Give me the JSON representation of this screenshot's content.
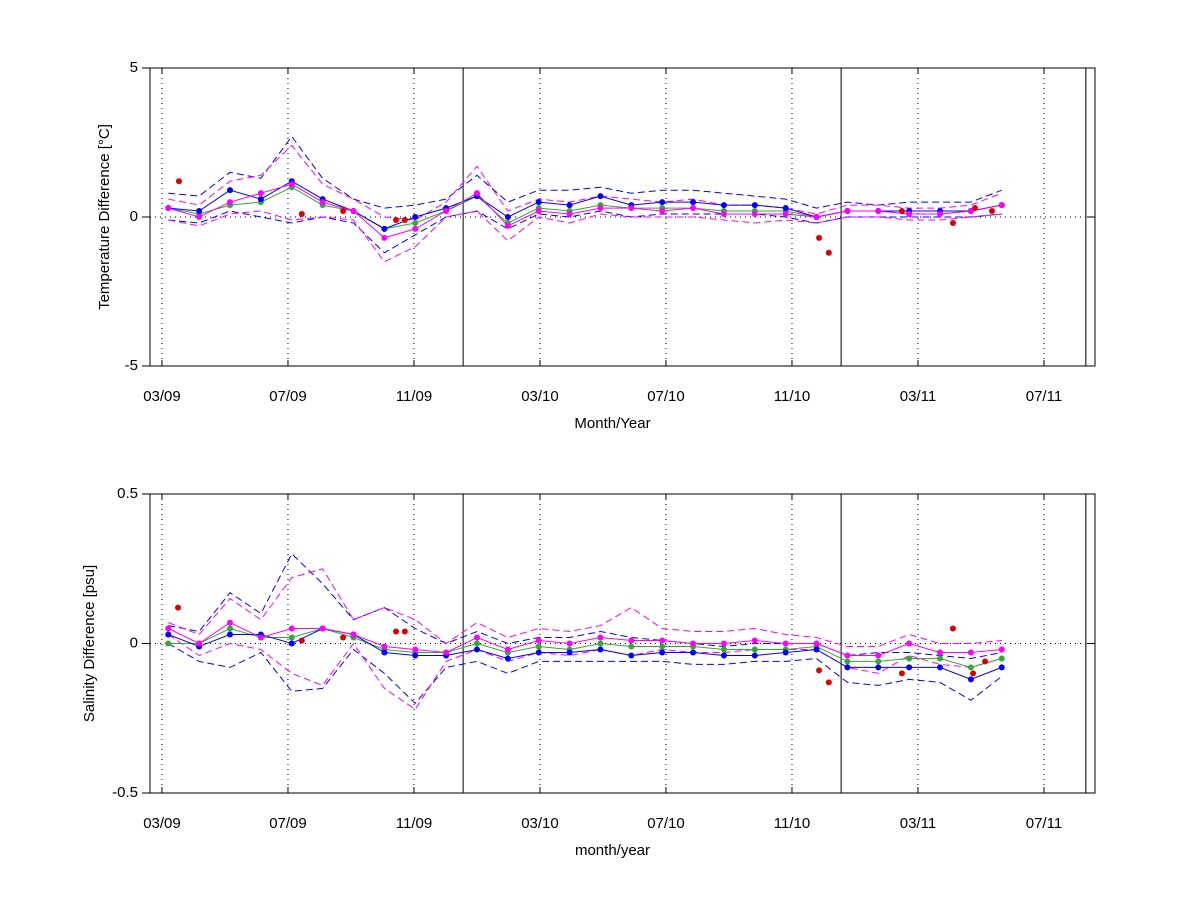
{
  "chart_data": [
    {
      "type": "line",
      "ylabel": "Temperature Difference [°C]",
      "xlabel": "Month/Year",
      "xlim": [
        -0.38,
        29.62
      ],
      "ylim": [
        -5,
        5
      ],
      "yticks": [
        -5,
        0,
        5
      ],
      "xticks": [
        {
          "value": 0,
          "label": "03/09"
        },
        {
          "value": 4,
          "label": "07/09"
        },
        {
          "value": 8,
          "label": "11/09"
        },
        {
          "value": 12,
          "label": "03/10"
        },
        {
          "value": 16,
          "label": "07/10"
        },
        {
          "value": 20,
          "label": "11/10"
        },
        {
          "value": 24,
          "label": "03/11"
        },
        {
          "value": 28,
          "label": "07/11"
        }
      ],
      "vlines": [
        9.56,
        21.56,
        29.33
      ],
      "grid": true,
      "x": [
        0.2,
        1.18,
        2.16,
        3.14,
        4.12,
        5.1,
        6.08,
        7.06,
        8.04,
        9.02,
        10,
        10.98,
        11.96,
        12.94,
        13.92,
        14.9,
        15.88,
        16.86,
        17.84,
        18.82,
        19.8,
        20.78,
        21.76,
        22.74,
        23.72,
        24.7,
        25.68,
        26.66
      ],
      "series": [
        {
          "color": "#0000ff",
          "style": "dashed",
          "values": [
            0.8,
            0.7,
            1.5,
            1.3,
            2.7,
            1.3,
            0.6,
            0.3,
            0.4,
            0.6,
            1.4,
            0.5,
            0.9,
            0.9,
            1.0,
            0.8,
            0.9,
            0.9,
            0.8,
            0.7,
            0.6,
            0.3,
            0.5,
            0.4,
            0.5,
            0.5,
            0.5,
            0.9
          ]
        },
        {
          "color": "#0000ff",
          "style": "dashed",
          "values": [
            -0.1,
            -0.2,
            0.2,
            0.0,
            -0.2,
            0.0,
            -0.2,
            -1.2,
            -0.6,
            0.0,
            0.2,
            -0.4,
            0.1,
            0.0,
            0.2,
            0.0,
            0.1,
            0.1,
            0.1,
            0.1,
            0.0,
            -0.2,
            0.0,
            0.0,
            0.0,
            0.0,
            0.0,
            0.1
          ]
        },
        {
          "color": "#ff00ff",
          "style": "dashed",
          "values": [
            0.6,
            0.4,
            1.2,
            1.4,
            2.4,
            1.1,
            0.6,
            0.0,
            -0.1,
            0.5,
            1.7,
            0.2,
            0.6,
            0.5,
            0.7,
            0.6,
            0.5,
            0.6,
            0.4,
            0.4,
            0.3,
            0.1,
            0.4,
            0.4,
            0.3,
            0.3,
            0.4,
            0.8
          ]
        },
        {
          "color": "#ff00ff",
          "style": "dashed",
          "values": [
            -0.1,
            -0.3,
            0.1,
            0.2,
            -0.1,
            0.0,
            -0.1,
            -1.5,
            -1.0,
            0.0,
            0.2,
            -0.8,
            0.0,
            -0.2,
            0.1,
            0.0,
            0.0,
            0.0,
            -0.1,
            -0.2,
            -0.1,
            -0.2,
            0.0,
            0.0,
            -0.1,
            -0.1,
            0.0,
            0.1
          ]
        },
        {
          "color": "#33aa33",
          "style": "marker-line",
          "values": [
            0.3,
            0.1,
            0.4,
            0.5,
            1.0,
            0.4,
            0.2,
            -0.4,
            -0.2,
            0.2,
            0.7,
            -0.2,
            0.3,
            0.2,
            0.4,
            0.3,
            0.3,
            0.3,
            0.2,
            0.2,
            0.2,
            0.0,
            0.2,
            0.2,
            0.1,
            0.1,
            0.2,
            0.4
          ]
        },
        {
          "color": "#0000ff",
          "style": "marker-line",
          "values": [
            0.3,
            0.2,
            0.9,
            0.6,
            1.2,
            0.6,
            0.2,
            -0.4,
            0.0,
            0.3,
            0.7,
            0.0,
            0.5,
            0.4,
            0.7,
            0.4,
            0.5,
            0.5,
            0.4,
            0.4,
            0.3,
            0.0,
            0.2,
            0.2,
            0.2,
            0.2,
            0.2,
            0.4
          ]
        },
        {
          "color": "#ff00ff",
          "style": "marker-line",
          "values": [
            0.3,
            0.0,
            0.5,
            0.8,
            1.1,
            0.5,
            0.2,
            -0.7,
            -0.4,
            0.2,
            0.8,
            -0.3,
            0.2,
            0.1,
            0.3,
            0.3,
            0.2,
            0.3,
            0.1,
            0.1,
            0.1,
            0.0,
            0.2,
            0.2,
            0.1,
            0.1,
            0.2,
            0.4
          ]
        },
        {
          "color": "#dd0000",
          "style": "marker",
          "x": [
            0.54,
            4.44,
            5.75,
            7.43,
            7.71,
            20.86,
            21.17,
            23.49,
            25.11,
            25.81,
            26.35
          ],
          "values": [
            1.2,
            0.1,
            0.2,
            -0.1,
            -0.1,
            -0.7,
            -1.2,
            0.2,
            -0.2,
            0.3,
            0.2
          ]
        }
      ]
    },
    {
      "type": "line",
      "ylabel": "Salinity Difference [psu]",
      "xlabel": "month/year",
      "xlim": [
        -0.38,
        29.62
      ],
      "ylim": [
        -0.5,
        0.5
      ],
      "yticks": [
        -0.5,
        0,
        0.5
      ],
      "xticks": [
        {
          "value": 0,
          "label": "03/09"
        },
        {
          "value": 4,
          "label": "07/09"
        },
        {
          "value": 8,
          "label": "11/09"
        },
        {
          "value": 12,
          "label": "03/10"
        },
        {
          "value": 16,
          "label": "07/10"
        },
        {
          "value": 20,
          "label": "11/10"
        },
        {
          "value": 24,
          "label": "03/11"
        },
        {
          "value": 28,
          "label": "07/11"
        }
      ],
      "vlines": [
        9.56,
        21.56,
        29.33
      ],
      "grid": true,
      "x": [
        0.2,
        1.18,
        2.16,
        3.14,
        4.12,
        5.1,
        6.08,
        7.06,
        8.04,
        9.02,
        10,
        10.98,
        11.96,
        12.94,
        13.92,
        14.9,
        15.88,
        16.86,
        17.84,
        18.82,
        19.8,
        20.78,
        21.76,
        22.74,
        23.72,
        24.7,
        25.68,
        26.66
      ],
      "series": [
        {
          "color": "#0000ff",
          "style": "dashed",
          "values": [
            0.06,
            0.04,
            0.17,
            0.1,
            0.3,
            0.2,
            0.08,
            0.12,
            0.05,
            0.0,
            0.04,
            0.0,
            0.02,
            0.02,
            0.04,
            0.02,
            0.01,
            0.0,
            -0.01,
            0.0,
            0.0,
            0.0,
            -0.04,
            -0.03,
            -0.03,
            -0.04,
            -0.05,
            -0.03
          ]
        },
        {
          "color": "#0000ff",
          "style": "dashed",
          "values": [
            0.0,
            -0.06,
            -0.08,
            -0.03,
            -0.16,
            -0.15,
            -0.02,
            -0.1,
            -0.2,
            -0.08,
            -0.06,
            -0.1,
            -0.06,
            -0.06,
            -0.06,
            -0.06,
            -0.06,
            -0.07,
            -0.07,
            -0.06,
            -0.06,
            -0.05,
            -0.13,
            -0.14,
            -0.12,
            -0.13,
            -0.19,
            -0.11
          ]
        },
        {
          "color": "#ff00ff",
          "style": "dashed",
          "values": [
            0.07,
            0.03,
            0.15,
            0.08,
            0.22,
            0.25,
            0.08,
            0.12,
            0.08,
            0.0,
            0.07,
            0.02,
            0.05,
            0.04,
            0.06,
            0.12,
            0.05,
            0.04,
            0.04,
            0.05,
            0.03,
            0.02,
            -0.01,
            -0.01,
            0.03,
            0.0,
            0.0,
            0.01
          ]
        },
        {
          "color": "#ff00ff",
          "style": "dashed",
          "values": [
            0.03,
            -0.04,
            0.0,
            -0.02,
            -0.1,
            -0.14,
            0.0,
            -0.15,
            -0.22,
            -0.06,
            -0.02,
            -0.06,
            -0.03,
            -0.04,
            -0.02,
            -0.04,
            -0.02,
            -0.03,
            -0.03,
            -0.02,
            -0.02,
            -0.02,
            -0.08,
            -0.1,
            -0.04,
            -0.07,
            -0.08,
            -0.05
          ]
        },
        {
          "color": "#33aa33",
          "style": "marker-line",
          "values": [
            0.0,
            0.0,
            0.05,
            0.02,
            0.02,
            0.05,
            0.02,
            -0.02,
            -0.03,
            -0.03,
            0.0,
            -0.03,
            -0.01,
            -0.02,
            0.0,
            -0.01,
            -0.01,
            -0.01,
            -0.02,
            -0.02,
            -0.02,
            -0.01,
            -0.06,
            -0.06,
            -0.05,
            -0.05,
            -0.08,
            -0.05
          ]
        },
        {
          "color": "#0000ff",
          "style": "marker-line",
          "values": [
            0.03,
            -0.01,
            0.03,
            0.03,
            0.0,
            0.05,
            0.03,
            -0.03,
            -0.04,
            -0.04,
            -0.02,
            -0.05,
            -0.03,
            -0.03,
            -0.02,
            -0.04,
            -0.03,
            -0.03,
            -0.04,
            -0.04,
            -0.03,
            -0.02,
            -0.08,
            -0.08,
            -0.08,
            -0.08,
            -0.12,
            -0.08
          ]
        },
        {
          "color": "#ff00ff",
          "style": "marker-line",
          "values": [
            0.05,
            0.0,
            0.07,
            0.02,
            0.05,
            0.05,
            0.03,
            -0.01,
            -0.02,
            -0.03,
            0.02,
            -0.02,
            0.01,
            0.0,
            0.02,
            0.01,
            0.01,
            0.0,
            0.0,
            0.01,
            0.0,
            0.0,
            -0.04,
            -0.04,
            0.0,
            -0.03,
            -0.03,
            -0.02
          ]
        },
        {
          "color": "#dd0000",
          "style": "marker",
          "x": [
            0.51,
            4.44,
            5.75,
            7.43,
            7.71,
            20.86,
            21.17,
            23.49,
            25.11,
            25.75,
            26.13
          ],
          "values": [
            0.12,
            0.01,
            0.02,
            0.04,
            0.04,
            -0.09,
            -0.13,
            -0.1,
            0.05,
            -0.1,
            -0.06
          ]
        }
      ]
    }
  ]
}
